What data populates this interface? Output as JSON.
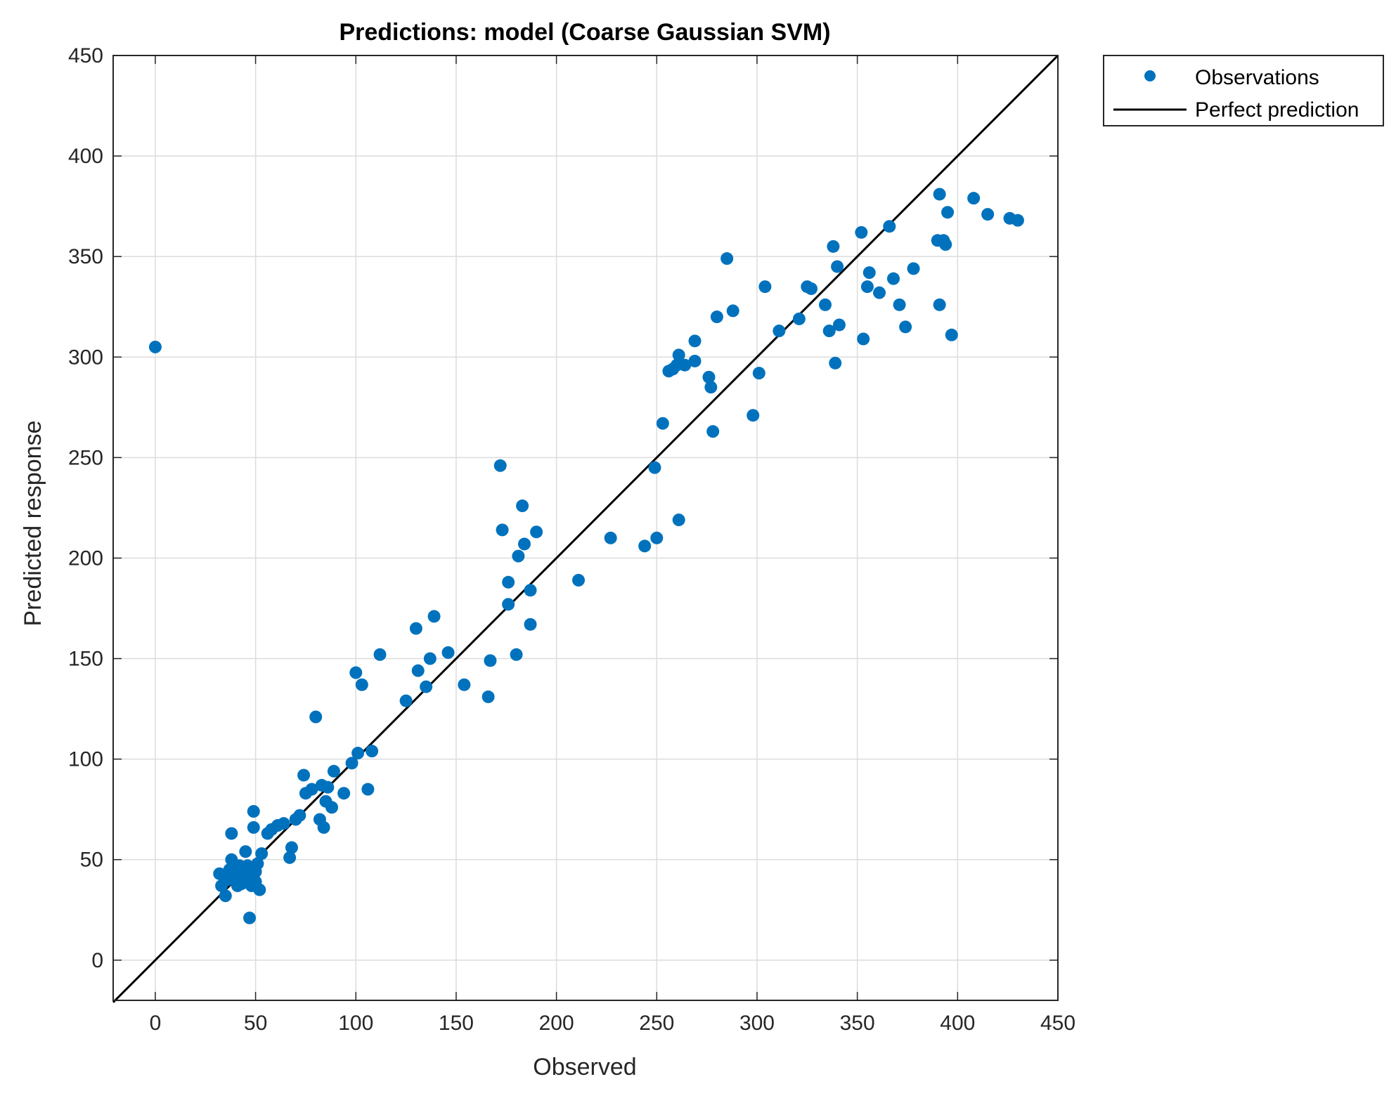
{
  "chart_data": {
    "type": "scatter",
    "title": "Predictions: model  (Coarse Gaussian SVM)",
    "xlabel": "Observed",
    "ylabel": "Predicted response",
    "xlim": [
      -21,
      450
    ],
    "ylim": [
      -20,
      450
    ],
    "xticks": [
      0,
      50,
      100,
      150,
      200,
      250,
      300,
      350,
      400,
      450
    ],
    "yticks": [
      0,
      50,
      100,
      150,
      200,
      250,
      300,
      350,
      400,
      450
    ],
    "grid": true,
    "legend": {
      "location": "outside top-right",
      "entries": [
        {
          "label": "Observations",
          "kind": "marker",
          "color": "#0072BD"
        },
        {
          "label": "Perfect prediction",
          "kind": "line",
          "color": "#000000"
        }
      ]
    },
    "series": [
      {
        "name": "Observations",
        "kind": "scatter",
        "color": "#0072BD",
        "points": [
          [
            0,
            305
          ],
          [
            32,
            43
          ],
          [
            33,
            37
          ],
          [
            35,
            32
          ],
          [
            36,
            40
          ],
          [
            37,
            45
          ],
          [
            38,
            50
          ],
          [
            38,
            63
          ],
          [
            39,
            41
          ],
          [
            40,
            44
          ],
          [
            41,
            37
          ],
          [
            42,
            47
          ],
          [
            43,
            38
          ],
          [
            44,
            42
          ],
          [
            45,
            54
          ],
          [
            46,
            40
          ],
          [
            46,
            47
          ],
          [
            47,
            21
          ],
          [
            48,
            43
          ],
          [
            48,
            37
          ],
          [
            49,
            66
          ],
          [
            49,
            74
          ],
          [
            50,
            44
          ],
          [
            50,
            39
          ],
          [
            51,
            48
          ],
          [
            52,
            35
          ],
          [
            53,
            53
          ],
          [
            56,
            63
          ],
          [
            58,
            65
          ],
          [
            61,
            67
          ],
          [
            64,
            68
          ],
          [
            67,
            51
          ],
          [
            68,
            56
          ],
          [
            70,
            70
          ],
          [
            72,
            72
          ],
          [
            74,
            92
          ],
          [
            75,
            83
          ],
          [
            78,
            85
          ],
          [
            80,
            121
          ],
          [
            82,
            70
          ],
          [
            83,
            87
          ],
          [
            84,
            66
          ],
          [
            85,
            79
          ],
          [
            86,
            86
          ],
          [
            88,
            76
          ],
          [
            89,
            94
          ],
          [
            94,
            83
          ],
          [
            98,
            98
          ],
          [
            100,
            143
          ],
          [
            101,
            103
          ],
          [
            103,
            137
          ],
          [
            106,
            85
          ],
          [
            108,
            104
          ],
          [
            112,
            152
          ],
          [
            125,
            129
          ],
          [
            130,
            165
          ],
          [
            131,
            144
          ],
          [
            135,
            136
          ],
          [
            137,
            150
          ],
          [
            139,
            171
          ],
          [
            146,
            153
          ],
          [
            154,
            137
          ],
          [
            166,
            131
          ],
          [
            167,
            149
          ],
          [
            172,
            246
          ],
          [
            173,
            214
          ],
          [
            176,
            188
          ],
          [
            176,
            177
          ],
          [
            180,
            152
          ],
          [
            181,
            201
          ],
          [
            183,
            226
          ],
          [
            184,
            207
          ],
          [
            187,
            184
          ],
          [
            187,
            167
          ],
          [
            190,
            213
          ],
          [
            211,
            189
          ],
          [
            227,
            210
          ],
          [
            244,
            206
          ],
          [
            249,
            245
          ],
          [
            250,
            210
          ],
          [
            253,
            267
          ],
          [
            256,
            293
          ],
          [
            258,
            294
          ],
          [
            260,
            296
          ],
          [
            261,
            301
          ],
          [
            261,
            219
          ],
          [
            264,
            296
          ],
          [
            269,
            308
          ],
          [
            269,
            298
          ],
          [
            276,
            290
          ],
          [
            277,
            285
          ],
          [
            278,
            263
          ],
          [
            280,
            320
          ],
          [
            285,
            349
          ],
          [
            288,
            323
          ],
          [
            298,
            271
          ],
          [
            301,
            292
          ],
          [
            304,
            335
          ],
          [
            311,
            313
          ],
          [
            321,
            319
          ],
          [
            325,
            335
          ],
          [
            327,
            334
          ],
          [
            334,
            326
          ],
          [
            336,
            313
          ],
          [
            338,
            355
          ],
          [
            339,
            297
          ],
          [
            340,
            345
          ],
          [
            341,
            316
          ],
          [
            352,
            362
          ],
          [
            353,
            309
          ],
          [
            355,
            335
          ],
          [
            356,
            342
          ],
          [
            361,
            332
          ],
          [
            366,
            365
          ],
          [
            368,
            339
          ],
          [
            371,
            326
          ],
          [
            374,
            315
          ],
          [
            378,
            344
          ],
          [
            390,
            358
          ],
          [
            391,
            381
          ],
          [
            391,
            326
          ],
          [
            393,
            358
          ],
          [
            394,
            356
          ],
          [
            395,
            372
          ],
          [
            397,
            311
          ],
          [
            408,
            379
          ],
          [
            415,
            371
          ],
          [
            426,
            369
          ],
          [
            430,
            368
          ]
        ]
      },
      {
        "name": "Perfect prediction",
        "kind": "line",
        "color": "#000000",
        "points": [
          [
            -21,
            -21
          ],
          [
            450,
            450
          ]
        ]
      }
    ]
  }
}
